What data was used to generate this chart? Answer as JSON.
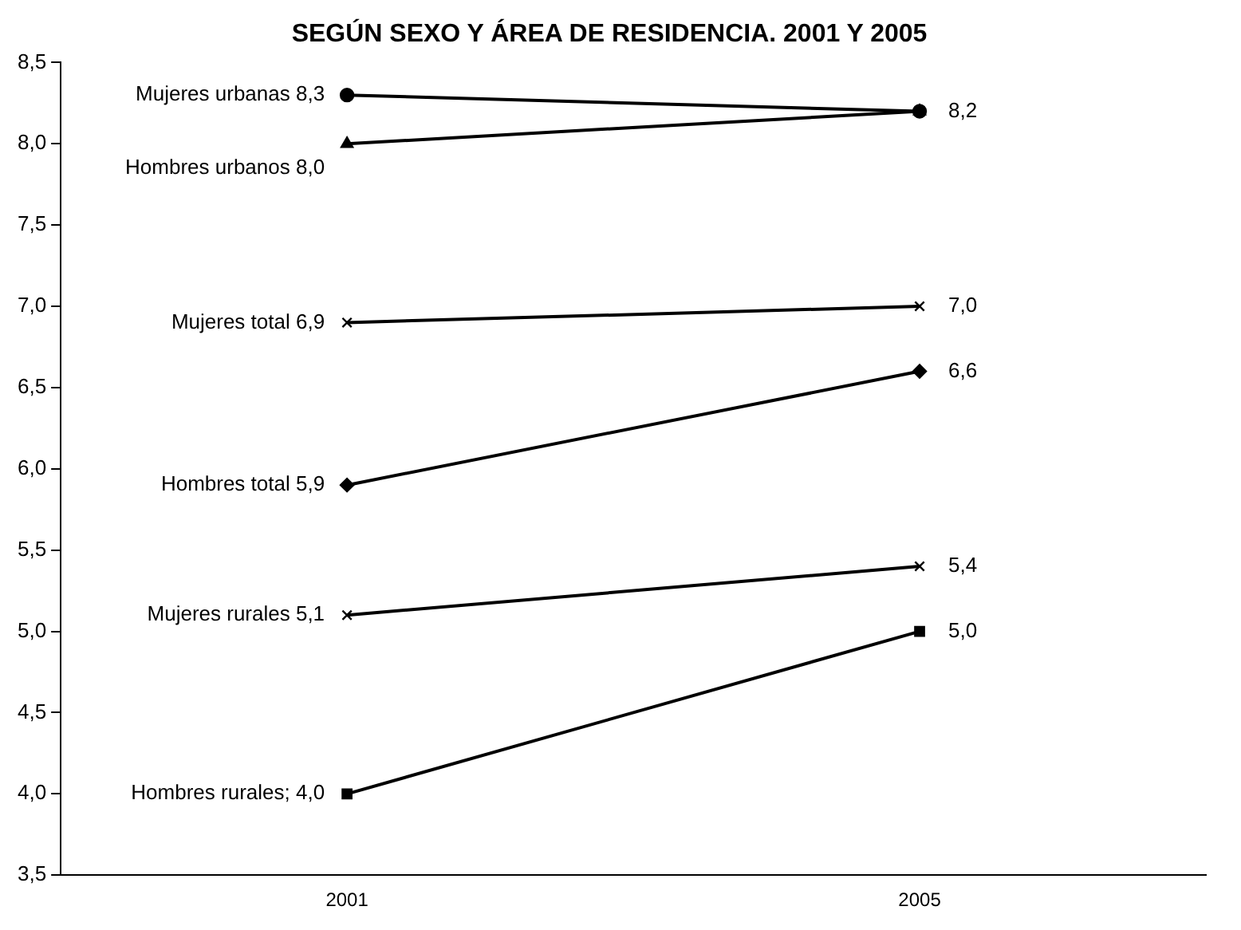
{
  "chart_data": {
    "type": "line",
    "title": "SEGÚN SEXO Y ÁREA DE RESIDENCIA. 2001 Y 2005",
    "categories": [
      "2001",
      "2005"
    ],
    "series": [
      {
        "name": "Mujeres urbanas 8,3",
        "color": "#000000",
        "values": [
          8.3,
          8.2
        ],
        "marker": "circle",
        "value_labels": [
          null,
          "8,2"
        ]
      },
      {
        "name": "Hombres urbanos 8,0",
        "color": "#000000",
        "values": [
          8.0,
          8.2
        ],
        "marker": "triangle",
        "value_labels": [
          null,
          null
        ]
      },
      {
        "name": "Mujeres total 6,9",
        "color": "#000000",
        "values": [
          6.9,
          7.0
        ],
        "marker": "cross",
        "value_labels": [
          null,
          "7,0"
        ]
      },
      {
        "name": "Hombres total 5,9",
        "color": "#000000",
        "values": [
          5.9,
          6.6
        ],
        "marker": "diamond",
        "value_labels": [
          null,
          "6,6"
        ]
      },
      {
        "name": "Mujeres rurales 5,1",
        "color": "#000000",
        "values": [
          5.1,
          5.4
        ],
        "marker": "cross",
        "value_labels": [
          null,
          "5,4"
        ]
      },
      {
        "name": "Hombres rurales; 4,0",
        "color": "#000000",
        "values": [
          4.0,
          5.0
        ],
        "marker": "square",
        "value_labels": [
          null,
          "5,0"
        ]
      }
    ],
    "ylim": [
      3.5,
      8.5
    ],
    "yticks": [
      {
        "value": 3.5,
        "label": "3,5"
      },
      {
        "value": 4,
        "label": "4,0"
      },
      {
        "value": 4.5,
        "label": "4,5"
      },
      {
        "value": 5,
        "label": "5,0"
      },
      {
        "value": 5.5,
        "label": "5,5"
      },
      {
        "value": 6,
        "label": "6,0"
      },
      {
        "value": 6.5,
        "label": "6,5"
      },
      {
        "value": 7,
        "label": "7,0"
      },
      {
        "value": 7.5,
        "label": "7,5"
      },
      {
        "value": 8,
        "label": "8,0"
      },
      {
        "value": 8.5,
        "label": "8,5"
      }
    ],
    "grid": false,
    "legend": false,
    "line_style": "solid"
  }
}
